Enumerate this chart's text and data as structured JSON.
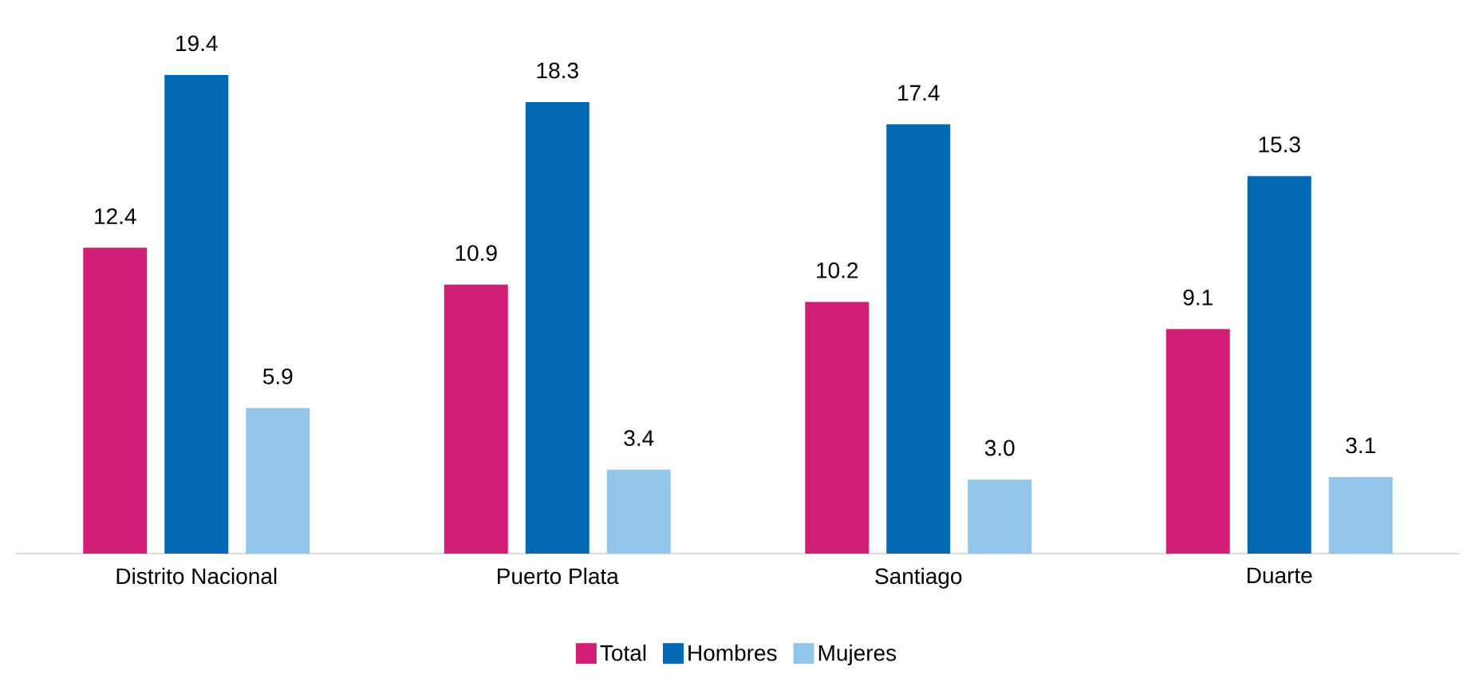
{
  "chart_data": {
    "type": "bar",
    "categories": [
      "Distrito Nacional",
      "Puerto Plata",
      "Santiago",
      "Duarte"
    ],
    "series": [
      {
        "name": "Total",
        "color": "#d01f75",
        "values": [
          12.4,
          10.9,
          10.2,
          9.1
        ],
        "value_labels": [
          "12.4",
          "10.9",
          "10.2",
          "9.1"
        ]
      },
      {
        "name": "Hombres",
        "color": "#0069b4",
        "values": [
          19.4,
          18.3,
          17.4,
          15.3
        ],
        "value_labels": [
          "19.4",
          "18.3",
          "17.4",
          "15.3"
        ]
      },
      {
        "name": "Mujeres",
        "color": "#93c5ea",
        "values": [
          5.9,
          3.4,
          3.0,
          3.1
        ],
        "value_labels": [
          "5.9",
          "3.4",
          "3.0",
          "3.1"
        ]
      }
    ],
    "legend": "bottom"
  }
}
